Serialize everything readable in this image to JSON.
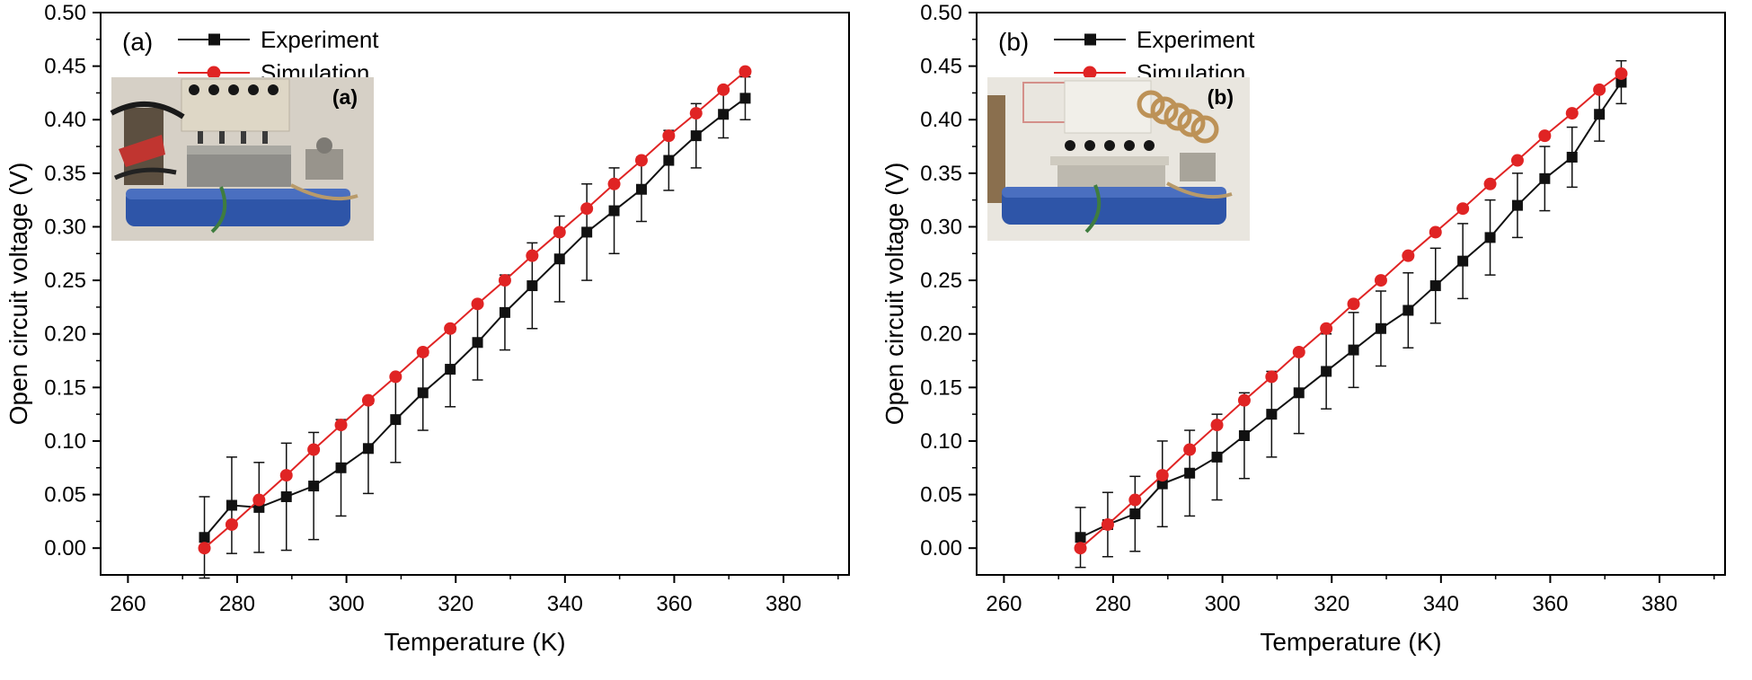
{
  "page": {
    "background": "#ffffff"
  },
  "colors": {
    "experiment": "#111111",
    "simulation": "#e02424",
    "frame": "#000000",
    "inset_base_blue": "#2e55a8",
    "inset_bg_a": "#d6d0c6",
    "inset_bg_b": "#e9e6df"
  },
  "chart_data": [
    {
      "type": "line",
      "panel_label": "(a)",
      "inset_label": "(a)",
      "inset_style": "a",
      "xlabel": "Temperature (K)",
      "ylabel": "Open circuit voltage (V)",
      "xlim": [
        255,
        392
      ],
      "ylim": [
        -0.025,
        0.5
      ],
      "xticks": [
        260,
        280,
        300,
        320,
        340,
        360,
        380
      ],
      "yticks": [
        0.0,
        0.05,
        0.1,
        0.15,
        0.2,
        0.25,
        0.3,
        0.35,
        0.4,
        0.45,
        0.5
      ],
      "ytick_labels": [
        "0.00",
        "0.05",
        "0.10",
        "0.15",
        "0.20",
        "0.25",
        "0.30",
        "0.35",
        "0.40",
        "0.45",
        "0.50"
      ],
      "grid": false,
      "legend_position": "top-left",
      "x": [
        274,
        279,
        284,
        289,
        294,
        299,
        304,
        309,
        314,
        319,
        324,
        329,
        334,
        339,
        344,
        349,
        354,
        359,
        364,
        369,
        373
      ],
      "series": [
        {
          "name": "Experiment",
          "marker": "square",
          "color": "#111111",
          "values": [
            0.01,
            0.04,
            0.038,
            0.048,
            0.058,
            0.075,
            0.093,
            0.12,
            0.145,
            0.167,
            0.192,
            0.22,
            0.245,
            0.27,
            0.295,
            0.315,
            0.335,
            0.362,
            0.385,
            0.405,
            0.42
          ],
          "yerr": [
            0.038,
            0.045,
            0.042,
            0.05,
            0.05,
            0.045,
            0.042,
            0.04,
            0.035,
            0.035,
            0.035,
            0.035,
            0.04,
            0.04,
            0.045,
            0.04,
            0.03,
            0.028,
            0.03,
            0.022,
            0.02
          ]
        },
        {
          "name": "Simulation",
          "marker": "circle",
          "color": "#e02424",
          "values": [
            0.0,
            0.022,
            0.045,
            0.068,
            0.092,
            0.115,
            0.138,
            0.16,
            0.183,
            0.205,
            0.228,
            0.25,
            0.273,
            0.295,
            0.317,
            0.34,
            0.362,
            0.385,
            0.406,
            0.428,
            0.445
          ]
        }
      ]
    },
    {
      "type": "line",
      "panel_label": "(b)",
      "inset_label": "(b)",
      "inset_style": "b",
      "xlabel": "Temperature (K)",
      "ylabel": "Open circuit voltage (V)",
      "xlim": [
        255,
        392
      ],
      "ylim": [
        -0.025,
        0.5
      ],
      "xticks": [
        260,
        280,
        300,
        320,
        340,
        360,
        380
      ],
      "yticks": [
        0.0,
        0.05,
        0.1,
        0.15,
        0.2,
        0.25,
        0.3,
        0.35,
        0.4,
        0.45,
        0.5
      ],
      "ytick_labels": [
        "0.00",
        "0.05",
        "0.10",
        "0.15",
        "0.20",
        "0.25",
        "0.30",
        "0.35",
        "0.40",
        "0.45",
        "0.50"
      ],
      "grid": false,
      "legend_position": "top-left",
      "x": [
        274,
        279,
        284,
        289,
        294,
        299,
        304,
        309,
        314,
        319,
        324,
        329,
        334,
        339,
        344,
        349,
        354,
        359,
        364,
        369,
        373
      ],
      "series": [
        {
          "name": "Experiment",
          "marker": "square",
          "color": "#111111",
          "values": [
            0.01,
            0.022,
            0.032,
            0.06,
            0.07,
            0.085,
            0.105,
            0.125,
            0.145,
            0.165,
            0.185,
            0.205,
            0.222,
            0.245,
            0.268,
            0.29,
            0.32,
            0.345,
            0.365,
            0.405,
            0.435
          ],
          "yerr": [
            0.028,
            0.03,
            0.035,
            0.04,
            0.04,
            0.04,
            0.04,
            0.04,
            0.038,
            0.035,
            0.035,
            0.035,
            0.035,
            0.035,
            0.035,
            0.035,
            0.03,
            0.03,
            0.028,
            0.025,
            0.02
          ]
        },
        {
          "name": "Simulation",
          "marker": "circle",
          "color": "#e02424",
          "values": [
            0.0,
            0.022,
            0.045,
            0.068,
            0.092,
            0.115,
            0.138,
            0.16,
            0.183,
            0.205,
            0.228,
            0.25,
            0.273,
            0.295,
            0.317,
            0.34,
            0.362,
            0.385,
            0.406,
            0.428,
            0.443
          ]
        }
      ]
    }
  ]
}
